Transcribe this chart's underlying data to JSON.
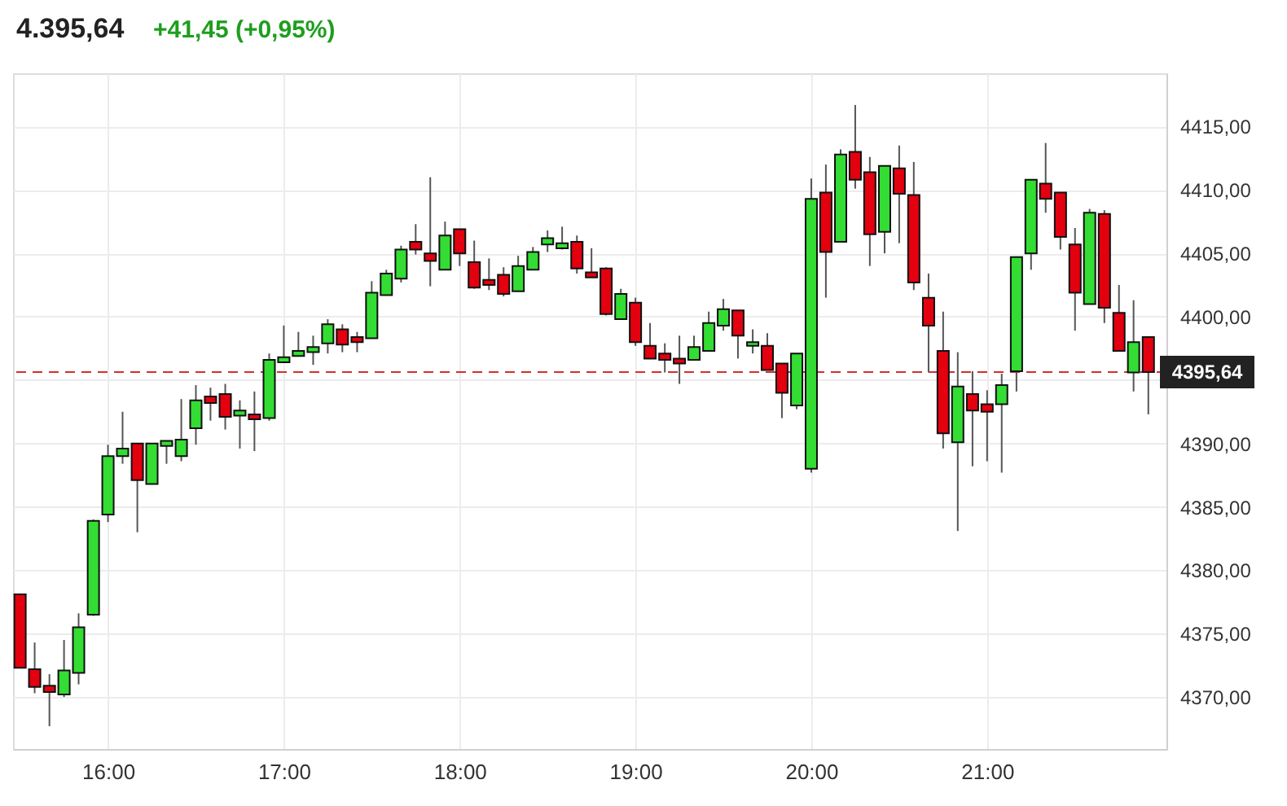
{
  "chart_data": {
    "type": "candlestick",
    "title": "4.395,64",
    "annotations": [
      "+41,45 (+0,95%)"
    ],
    "x": [
      15.5,
      15.583,
      15.667,
      15.75,
      15.833,
      15.917,
      16,
      16.083,
      16.167,
      16.25,
      16.333,
      16.417,
      16.5,
      16.583,
      16.667,
      16.75,
      16.833,
      16.917,
      17,
      17.083,
      17.167,
      17.25,
      17.333,
      17.417,
      17.5,
      17.583,
      17.667,
      17.75,
      17.833,
      17.917,
      18,
      18.083,
      18.167,
      18.25,
      18.333,
      18.417,
      18.5,
      18.583,
      18.667,
      18.75,
      18.833,
      18.917,
      19,
      19.083,
      19.167,
      19.25,
      19.333,
      19.417,
      19.5,
      19.583,
      19.667,
      19.75,
      19.833,
      19.917,
      20,
      20.083,
      20.167,
      20.25,
      20.333,
      20.417,
      20.5,
      20.583,
      20.667,
      20.75,
      20.833,
      20.917,
      21,
      21.083,
      21.167,
      21.25,
      21.333,
      21.417,
      21.5,
      21.583,
      21.667,
      21.75,
      21.833,
      21.917
    ],
    "ohlc": [
      [
        4378.1,
        4378.1,
        4372.3,
        4372.3
      ],
      [
        4372.2,
        4374.3,
        4370.3,
        4370.8
      ],
      [
        4370.9,
        4371.8,
        4367.7,
        4370.4
      ],
      [
        4370.2,
        4374.5,
        4370.0,
        4372.1
      ],
      [
        4371.9,
        4376.6,
        4371.0,
        4375.5
      ],
      [
        4376.5,
        4384.0,
        4376.4,
        4383.9
      ],
      [
        4384.4,
        4389.9,
        4383.8,
        4389.0
      ],
      [
        4389.0,
        4392.5,
        4388.4,
        4389.6
      ],
      [
        4390.0,
        4390.0,
        4383.0,
        4387.1
      ],
      [
        4386.8,
        4390.0,
        4386.8,
        4390.0
      ],
      [
        4389.8,
        4390.2,
        4388.4,
        4390.2
      ],
      [
        4389.0,
        4393.5,
        4388.6,
        4390.3
      ],
      [
        4391.2,
        4394.6,
        4389.9,
        4393.4
      ],
      [
        4393.7,
        4394.4,
        4391.8,
        4393.2
      ],
      [
        4393.9,
        4394.7,
        4391.1,
        4392.1
      ],
      [
        4392.2,
        4393.4,
        4389.6,
        4392.6
      ],
      [
        4392.3,
        4394.1,
        4389.4,
        4391.9
      ],
      [
        4392.0,
        4397.1,
        4391.8,
        4396.6
      ],
      [
        4396.4,
        4399.3,
        4396.4,
        4396.8
      ],
      [
        4396.9,
        4398.8,
        4396.9,
        4397.3
      ],
      [
        4397.2,
        4398.5,
        4396.2,
        4397.6
      ],
      [
        4397.9,
        4399.8,
        4397.1,
        4399.4
      ],
      [
        4399.0,
        4399.4,
        4397.2,
        4397.8
      ],
      [
        4398.4,
        4398.8,
        4397.2,
        4398.0
      ],
      [
        4398.3,
        4402.8,
        4398.3,
        4401.9
      ],
      [
        4401.7,
        4403.7,
        4401.7,
        4403.4
      ],
      [
        4403.0,
        4405.6,
        4402.7,
        4405.3
      ],
      [
        4405.9,
        4407.3,
        4404.9,
        4405.3
      ],
      [
        4405.0,
        4411.0,
        4402.4,
        4404.4
      ],
      [
        4403.7,
        4407.5,
        4403.7,
        4406.4
      ],
      [
        4406.9,
        4406.9,
        4404.0,
        4405.0
      ],
      [
        4404.3,
        4406.0,
        4402.2,
        4402.3
      ],
      [
        4402.9,
        4404.6,
        4402.1,
        4402.5
      ],
      [
        4403.3,
        4403.9,
        4401.6,
        4401.8
      ],
      [
        4402.0,
        4404.8,
        4402.0,
        4404.0
      ],
      [
        4403.7,
        4405.5,
        4403.7,
        4405.1
      ],
      [
        4405.7,
        4406.8,
        4405.1,
        4406.2
      ],
      [
        4405.4,
        4407.1,
        4405.3,
        4405.8
      ],
      [
        4405.9,
        4406.4,
        4403.4,
        4403.8
      ],
      [
        4403.5,
        4405.4,
        4403.1,
        4403.1
      ],
      [
        4403.8,
        4403.9,
        4400.1,
        4400.2
      ],
      [
        4399.8,
        4402.2,
        4399.8,
        4401.8
      ],
      [
        4401.1,
        4401.5,
        4397.7,
        4398.0
      ],
      [
        4397.7,
        4399.5,
        4396.7,
        4396.7
      ],
      [
        4397.1,
        4397.9,
        4395.6,
        4396.6
      ],
      [
        4396.7,
        4398.5,
        4394.7,
        4396.3
      ],
      [
        4396.6,
        4398.5,
        4396.6,
        4397.6
      ],
      [
        4397.3,
        4400.4,
        4397.3,
        4399.5
      ],
      [
        4399.3,
        4401.4,
        4398.9,
        4400.6
      ],
      [
        4400.5,
        4400.5,
        4396.7,
        4398.5
      ],
      [
        4397.7,
        4399.0,
        4397.1,
        4398.0
      ],
      [
        4397.7,
        4398.7,
        4395.8,
        4395.8
      ],
      [
        4396.3,
        4396.3,
        4392.0,
        4394.0
      ],
      [
        4393.0,
        4397.1,
        4392.7,
        4397.1
      ],
      [
        4388.0,
        4410.9,
        4387.7,
        4409.3
      ],
      [
        4409.8,
        4412.0,
        4401.5,
        4405.1
      ],
      [
        4405.9,
        4413.2,
        4405.9,
        4412.8
      ],
      [
        4413.0,
        4416.7,
        4410.1,
        4410.8
      ],
      [
        4411.4,
        4412.6,
        4404.0,
        4406.5
      ],
      [
        4406.7,
        4411.9,
        4405.0,
        4411.9
      ],
      [
        4411.7,
        4413.5,
        4405.8,
        4409.7
      ],
      [
        4409.6,
        4412.2,
        4402.1,
        4402.7
      ],
      [
        4401.5,
        4403.4,
        4395.6,
        4399.3
      ],
      [
        4397.3,
        4400.4,
        4389.6,
        4390.8
      ],
      [
        4390.1,
        4397.2,
        4383.1,
        4394.5
      ],
      [
        4393.9,
        4395.7,
        4388.2,
        4392.6
      ],
      [
        4393.1,
        4394.2,
        4388.6,
        4392.5
      ],
      [
        4393.1,
        4395.5,
        4387.7,
        4394.6
      ],
      [
        4395.7,
        4404.7,
        4394.1,
        4404.7
      ],
      [
        4405.0,
        4410.8,
        4403.7,
        4410.8
      ],
      [
        4410.5,
        4413.7,
        4408.2,
        4409.3
      ],
      [
        4409.8,
        4409.8,
        4405.3,
        4406.3
      ],
      [
        4405.7,
        4407.0,
        4398.9,
        4401.9
      ],
      [
        4401.0,
        4408.5,
        4401.0,
        4408.2
      ],
      [
        4408.1,
        4408.4,
        4399.5,
        4400.7
      ],
      [
        4400.3,
        4402.5,
        4397.3,
        4397.3
      ],
      [
        4395.6,
        4401.3,
        4394.1,
        4398.0
      ],
      [
        4398.4,
        4398.4,
        4392.3,
        4395.64
      ]
    ],
    "colors": [
      "#e3000f",
      "#e3000f",
      "#e3000f",
      "#33dd33",
      "#33dd33",
      "#33dd33",
      "#33dd33",
      "#33dd33",
      "#e3000f",
      "#33dd33",
      "#33dd33",
      "#33dd33",
      "#33dd33",
      "#e3000f",
      "#e3000f",
      "#33dd33",
      "#e3000f",
      "#33dd33",
      "#33dd33",
      "#33dd33",
      "#33dd33",
      "#33dd33",
      "#e3000f",
      "#e3000f",
      "#33dd33",
      "#33dd33",
      "#33dd33",
      "#e3000f",
      "#e3000f",
      "#33dd33",
      "#e3000f",
      "#e3000f",
      "#e3000f",
      "#e3000f",
      "#33dd33",
      "#33dd33",
      "#33dd33",
      "#33dd33",
      "#e3000f",
      "#e3000f",
      "#e3000f",
      "#33dd33",
      "#e3000f",
      "#e3000f",
      "#e3000f",
      "#e3000f",
      "#33dd33",
      "#33dd33",
      "#33dd33",
      "#e3000f",
      "#33dd33",
      "#e3000f",
      "#e3000f",
      "#33dd33",
      "#33dd33",
      "#e3000f",
      "#33dd33",
      "#e3000f",
      "#e3000f",
      "#33dd33",
      "#e3000f",
      "#e3000f",
      "#e3000f",
      "#e3000f",
      "#33dd33",
      "#e3000f",
      "#e3000f",
      "#33dd33",
      "#33dd33",
      "#33dd33",
      "#e3000f",
      "#e3000f",
      "#e3000f",
      "#33dd33",
      "#e3000f",
      "#e3000f",
      "#33dd33",
      "#e3000f"
    ],
    "xlim": [
      15.46,
      22.02
    ],
    "xticks": [
      {
        "value": 16,
        "label": "16:00"
      },
      {
        "value": 17,
        "label": "17:00"
      },
      {
        "value": 18,
        "label": "18:00"
      },
      {
        "value": 19,
        "label": "19:00"
      },
      {
        "value": 20,
        "label": "20:00"
      },
      {
        "value": 21,
        "label": "21:00"
      }
    ],
    "ylim": [
      4365.9,
      4419.2
    ],
    "yticks": [
      {
        "value": 4370,
        "label": "4370,00"
      },
      {
        "value": 4375,
        "label": "4375,00"
      },
      {
        "value": 4380,
        "label": "4380,00"
      },
      {
        "value": 4385,
        "label": "4385,00"
      },
      {
        "value": 4390,
        "label": "4390,00"
      },
      {
        "value": 4395,
        "label": null
      },
      {
        "value": 4400,
        "label": "4400,00"
      },
      {
        "value": 4405,
        "label": "4405,00"
      },
      {
        "value": 4410,
        "label": "4410,00"
      },
      {
        "value": 4415,
        "label": "4415,00"
      }
    ],
    "ref_lines": [
      {
        "axis": "y",
        "value": 4395.64,
        "label": "4395,64",
        "color": "#d32f2f",
        "line_style": "dashed"
      }
    ],
    "grid": true
  }
}
